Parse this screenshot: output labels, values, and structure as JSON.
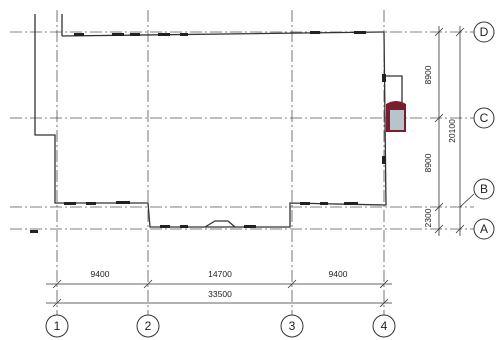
{
  "grid_columns": [
    {
      "label": "1"
    },
    {
      "label": "2"
    },
    {
      "label": "3"
    },
    {
      "label": "4"
    }
  ],
  "grid_rows": [
    {
      "label": "D"
    },
    {
      "label": "C"
    },
    {
      "label": "B"
    },
    {
      "label": "A"
    }
  ],
  "horizontal_dimensions": {
    "segments": [
      "9400",
      "14700",
      "9400"
    ],
    "total": "33500"
  },
  "vertical_dimensions": {
    "segments": [
      "8900",
      "8900",
      "2300"
    ],
    "total": "20100"
  },
  "colors": {
    "line": "#333333",
    "grid": "#555555",
    "door_accent": "#7a1e2e",
    "door_fill": "#b8c4cc"
  }
}
